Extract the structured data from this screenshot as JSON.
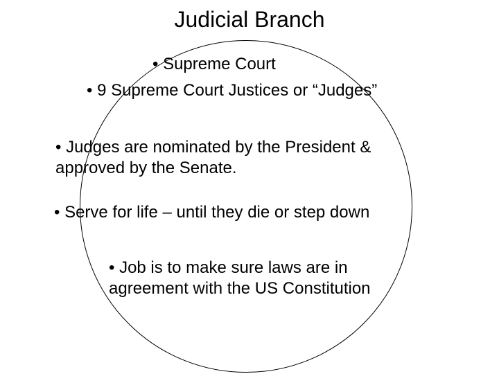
{
  "title": "Judicial Branch",
  "bullets": {
    "b1": "• Supreme Court",
    "b2": "• 9 Supreme Court Justices or “Judges”",
    "b3": "• Judges are nominated by the President & approved by the Senate.",
    "b4": "• Serve for life – until they die or step down",
    "b5": "• Job is to make sure laws are in agreement with the US Constitution"
  },
  "style": {
    "title_fontsize": 32,
    "bullet_fontsize": 24,
    "text_color": "#000000",
    "background_color": "#ffffff",
    "circle_border_color": "#000000",
    "circle_diameter": 480,
    "font_family": "Arial"
  }
}
